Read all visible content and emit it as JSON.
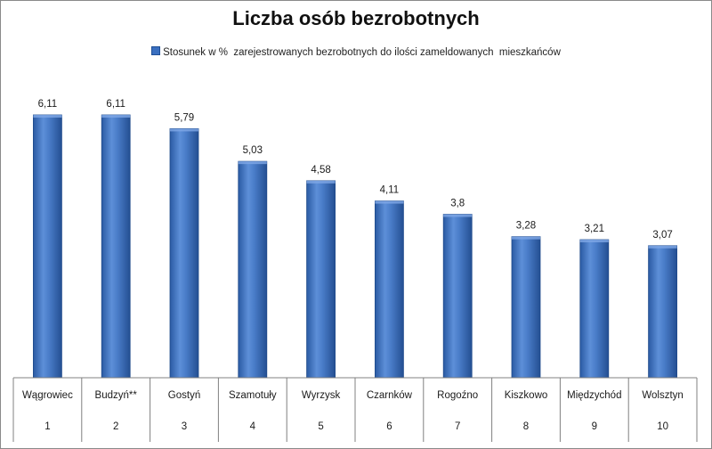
{
  "chart_data": {
    "type": "bar",
    "title": "Liczba osób bezrobotnych",
    "legend_position": "top",
    "categories": [
      "Wągrowiec",
      "Budzyń**",
      "Gostyń",
      "Szamotuły",
      "Wyrzysk",
      "Czarnków",
      "Rogoźno",
      "Kiszkowo",
      "Międzychód",
      "Wolsztyn"
    ],
    "ranks": [
      "1",
      "2",
      "3",
      "4",
      "5",
      "6",
      "7",
      "8",
      "9",
      "10"
    ],
    "series": [
      {
        "name": "Stosunek w %  zarejestrowanych bezrobotnych do ilości zameldowanych  mieszkańców",
        "color": "#3a6fc0",
        "values": [
          6.11,
          6.11,
          5.79,
          5.03,
          4.58,
          4.11,
          3.8,
          3.28,
          3.21,
          3.07
        ],
        "value_labels": [
          "6,11",
          "6,11",
          "5,79",
          "5,03",
          "4,58",
          "4,11",
          "3,8",
          "3,28",
          "3,21",
          "3,07"
        ]
      }
    ],
    "ylim": [
      0,
      6.11
    ],
    "grid": false,
    "xlabel": "",
    "ylabel": ""
  }
}
